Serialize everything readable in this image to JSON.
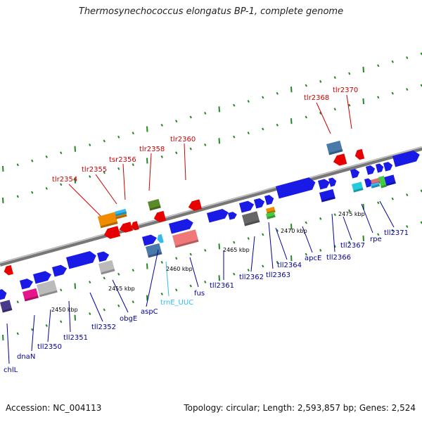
{
  "title": "Thermosynechococcus elongatus BP-1, complete genome",
  "footer": {
    "accession": "Accession: NC_004113",
    "summary": "Topology: circular; Length: 2,593,857 bp; Genes: 2,524"
  },
  "colors": {
    "forward_gene": "#1a1ae6",
    "reverse_gene": "#e60000",
    "forward_label": "#000099",
    "reverse_label": "#cc0000",
    "trna": "#33bbee",
    "backbone": "#888888",
    "tick": "#228822"
  },
  "scale": {
    "ticks": [
      {
        "label": "2450 kbp"
      },
      {
        "label": "2455 kbp"
      },
      {
        "label": "2460 kbp"
      },
      {
        "label": "2465 kbp"
      },
      {
        "label": "2470 kbp"
      },
      {
        "label": "2475 kbp"
      }
    ]
  },
  "genes_forward": [
    {
      "label": "chlL"
    },
    {
      "label": "dnaN"
    },
    {
      "label": "tll2350"
    },
    {
      "label": "tll2351"
    },
    {
      "label": "tll2352"
    },
    {
      "label": "obgE"
    },
    {
      "label": "aspC"
    },
    {
      "label": "fus"
    },
    {
      "label": "tll2361"
    },
    {
      "label": "tll2362"
    },
    {
      "label": "tll2363"
    },
    {
      "label": "tll2364"
    },
    {
      "label": "apcE"
    },
    {
      "label": "tll2366"
    },
    {
      "label": "tll2367"
    },
    {
      "label": "rpe"
    },
    {
      "label": "tll2371"
    }
  ],
  "rna": [
    {
      "label": "trnE_UUC"
    }
  ],
  "genes_reverse": [
    {
      "label": "tlr2354"
    },
    {
      "label": "tlr2355"
    },
    {
      "label": "tsr2356"
    },
    {
      "label": "tlr2358"
    },
    {
      "label": "tlr2360"
    },
    {
      "label": "tlr2368"
    },
    {
      "label": "tlr2370"
    }
  ]
}
